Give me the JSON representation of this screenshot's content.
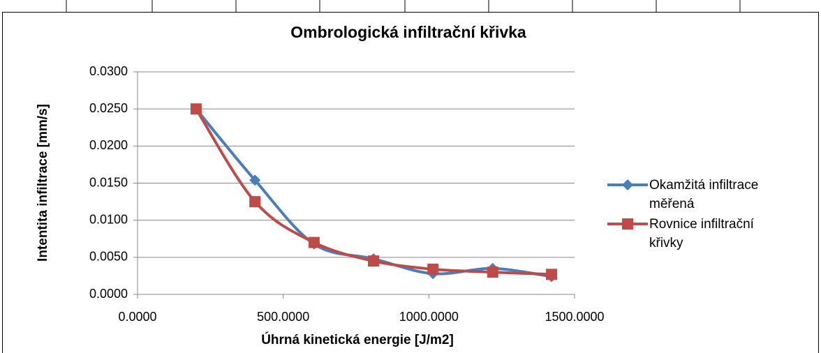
{
  "chart_data": {
    "type": "line",
    "title": "Ombrologická infiltrační křivka",
    "x_label": "Úhrná kinetická energie [J/m2]",
    "y_label": "Intentita infiltrace [mm/s]",
    "x": [
      201,
      403,
      606,
      810,
      1014,
      1219,
      1421
    ],
    "series": [
      {
        "name": "Okamžitá infiltrace měřená",
        "color": "#4a7ebb",
        "marker": "diamond",
        "values": [
          0.025,
          0.0154,
          0.0068,
          0.0048,
          0.0028,
          0.0035,
          0.0024
        ]
      },
      {
        "name": "Rovnice infiltrační křivky",
        "color": "#be4b48",
        "marker": "square",
        "values": [
          0.025,
          0.0125,
          0.007,
          0.0045,
          0.0034,
          0.003,
          0.0027
        ]
      }
    ],
    "xlim": [
      0,
      1500
    ],
    "xticks": [
      {
        "value": 0,
        "label": "0.0000"
      },
      {
        "value": 500,
        "label": "500.0000"
      },
      {
        "value": 1000,
        "label": "1000.0000"
      },
      {
        "value": 1500,
        "label": "1500.0000"
      }
    ],
    "ylim": [
      0,
      0.03
    ],
    "yticks": [
      {
        "value": 0,
        "label": "0.0000"
      },
      {
        "value": 0.005,
        "label": "0.0050"
      },
      {
        "value": 0.01,
        "label": "0.0100"
      },
      {
        "value": 0.015,
        "label": "0.0150"
      },
      {
        "value": 0.02,
        "label": "0.0200"
      },
      {
        "value": 0.025,
        "label": "0.0250"
      },
      {
        "value": 0.03,
        "label": "0.0300"
      }
    ],
    "grid": true,
    "smooth": true,
    "legend": "right"
  }
}
